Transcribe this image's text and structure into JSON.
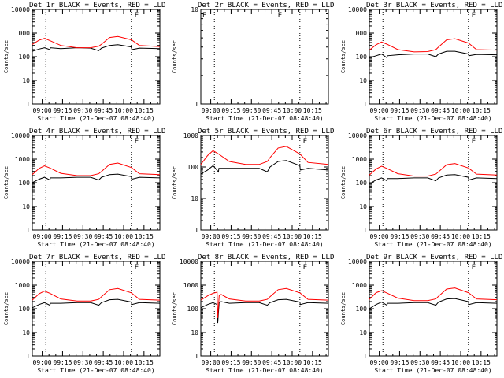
{
  "figure": {
    "colors": {
      "events": "#000000",
      "lld": "#ff0000",
      "axes": "#000000",
      "background": "#ffffff"
    }
  },
  "chart_data": [
    {
      "type": "line",
      "title": "Det 1r BLACK = Events, RED = LLD",
      "xlabel": "Start Time (21-Dec-07 08:48:40)",
      "ylabel": "Counts/sec",
      "x_ticks": [
        "09:00",
        "09:15",
        "09:30",
        "09:45",
        "10:00",
        "10:15"
      ],
      "x_tick_values": [
        4.3,
        19.3,
        34.3,
        49.3,
        64.3,
        79.3
      ],
      "xlim": [
        -3,
        91
      ],
      "ylim": [
        1,
        10000
      ],
      "y_log": true,
      "y_ticks": [
        "1",
        "10",
        "100",
        "1000",
        "10000"
      ],
      "vlines": [
        7,
        70
      ],
      "flag": "E",
      "series": [
        {
          "name": "Events",
          "color": "#000000",
          "x": [
            -3,
            2,
            6,
            10,
            10.3,
            18,
            30,
            40,
            46,
            48,
            54,
            60,
            70,
            70.3,
            76,
            91
          ],
          "y": [
            170,
            210,
            240,
            200,
            240,
            220,
            240,
            230,
            180,
            230,
            300,
            320,
            260,
            200,
            230,
            220
          ]
        },
        {
          "name": "LLD",
          "color": "#ff0000",
          "x": [
            -3,
            2,
            6,
            10,
            18,
            30,
            40,
            46,
            48,
            54,
            60,
            70,
            76,
            91
          ],
          "y": [
            330,
            500,
            600,
            480,
            300,
            240,
            240,
            280,
            340,
            650,
            720,
            520,
            300,
            270
          ]
        }
      ]
    },
    {
      "type": "line",
      "title": "Det 2r BLACK = Events, RED = LLD",
      "xlabel": "Start Time (21-Dec-07 08:48:40)",
      "ylabel": "Counts/sec",
      "x_ticks": [
        "09:00",
        "09:15",
        "09:30",
        "09:45",
        "10:00",
        "10:15"
      ],
      "x_tick_values": [
        4.3,
        19.3,
        34.3,
        49.3,
        64.3,
        79.3
      ],
      "xlim": [
        -3,
        91
      ],
      "ylim": [
        1,
        10
      ],
      "y_log": true,
      "y_ticks": [
        "1",
        "10"
      ],
      "vlines": [
        7,
        70
      ],
      "flags": [
        "E",
        "E"
      ],
      "series": []
    },
    {
      "type": "line",
      "title": "Det 3r BLACK = Events, RED = LLD",
      "xlabel": "Start Time (21-Dec-07 08:48:40)",
      "ylabel": "Counts/sec",
      "x_ticks": [
        "09:00",
        "09:15",
        "09:30",
        "09:45",
        "10:00",
        "10:15"
      ],
      "x_tick_values": [
        4.3,
        19.3,
        34.3,
        49.3,
        64.3,
        79.3
      ],
      "xlim": [
        -3,
        91
      ],
      "ylim": [
        1,
        10000
      ],
      "y_log": true,
      "y_ticks": [
        "1",
        "10",
        "100",
        "1000",
        "10000"
      ],
      "vlines": [
        7,
        70
      ],
      "flag": "E",
      "series": [
        {
          "name": "Events",
          "color": "#000000",
          "x": [
            -3,
            2,
            6,
            10,
            10.3,
            18,
            30,
            40,
            46,
            48,
            54,
            60,
            70,
            70.3,
            76,
            91
          ],
          "y": [
            90,
            110,
            130,
            90,
            110,
            120,
            130,
            130,
            100,
            130,
            170,
            170,
            130,
            110,
            125,
            120
          ]
        },
        {
          "name": "LLD",
          "color": "#ff0000",
          "x": [
            -3,
            2,
            6,
            10,
            18,
            30,
            40,
            46,
            48,
            54,
            60,
            70,
            76,
            91
          ],
          "y": [
            190,
            320,
            420,
            340,
            200,
            160,
            165,
            200,
            260,
            520,
            580,
            380,
            200,
            190
          ]
        }
      ]
    },
    {
      "type": "line",
      "title": "Det 4r BLACK = Events, RED = LLD",
      "xlabel": "Start Time (21-Dec-07 08:48:40)",
      "ylabel": "Counts/sec",
      "x_ticks": [
        "09:00",
        "09:15",
        "09:30",
        "09:45",
        "10:00",
        "10:15"
      ],
      "x_tick_values": [
        4.3,
        19.3,
        34.3,
        49.3,
        64.3,
        79.3
      ],
      "xlim": [
        -3,
        91
      ],
      "ylim": [
        1,
        10000
      ],
      "y_log": true,
      "y_ticks": [
        "1",
        "10",
        "100",
        "1000",
        "10000"
      ],
      "vlines": [
        7,
        70
      ],
      "flag": "E",
      "series": [
        {
          "name": "Events",
          "color": "#000000",
          "x": [
            -3,
            2,
            6,
            10,
            10.3,
            18,
            30,
            40,
            46,
            48,
            54,
            60,
            70,
            70.3,
            76,
            91
          ],
          "y": [
            100,
            140,
            170,
            130,
            160,
            160,
            170,
            170,
            130,
            170,
            220,
            230,
            180,
            140,
            170,
            160
          ]
        },
        {
          "name": "LLD",
          "color": "#ff0000",
          "x": [
            -3,
            2,
            6,
            10,
            18,
            30,
            40,
            46,
            48,
            54,
            60,
            70,
            76,
            91
          ],
          "y": [
            220,
            400,
            520,
            420,
            250,
            200,
            200,
            240,
            300,
            600,
            680,
            440,
            240,
            220
          ]
        }
      ]
    },
    {
      "type": "line",
      "title": "Det 5r BLACK = Events, RED = LLD",
      "xlabel": "Start Time (21-Dec-07 08:48:40)",
      "ylabel": "Counts/sec",
      "x_ticks": [
        "09:00",
        "09:15",
        "09:30",
        "09:45",
        "10:00",
        "10:15"
      ],
      "x_tick_values": [
        4.3,
        19.3,
        34.3,
        49.3,
        64.3,
        79.3
      ],
      "xlim": [
        -3,
        91
      ],
      "ylim": [
        1,
        1000
      ],
      "y_log": true,
      "y_ticks": [
        "1",
        "10",
        "100",
        "1000"
      ],
      "vlines": [
        7,
        70
      ],
      "flag": "E",
      "series": [
        {
          "name": "Events",
          "color": "#000000",
          "x": [
            -3,
            2,
            6,
            10,
            10.3,
            18,
            30,
            40,
            46,
            48,
            54,
            60,
            70,
            70.3,
            76,
            91
          ],
          "y": [
            60,
            80,
            110,
            70,
            90,
            90,
            90,
            90,
            70,
            100,
            150,
            160,
            110,
            80,
            90,
            80
          ]
        },
        {
          "name": "LLD",
          "color": "#ff0000",
          "x": [
            -3,
            2,
            6,
            10,
            18,
            30,
            40,
            46,
            48,
            54,
            60,
            70,
            76,
            91
          ],
          "y": [
            120,
            230,
            330,
            260,
            150,
            120,
            120,
            150,
            200,
            400,
            450,
            260,
            140,
            120
          ]
        }
      ]
    },
    {
      "type": "line",
      "title": "Det 6r BLACK = Events, RED = LLD",
      "xlabel": "Start Time (21-Dec-07 08:48:40)",
      "ylabel": "Counts/sec",
      "x_ticks": [
        "09:00",
        "09:15",
        "09:30",
        "09:45",
        "10:00",
        "10:15"
      ],
      "x_tick_values": [
        4.3,
        19.3,
        34.3,
        49.3,
        64.3,
        79.3
      ],
      "xlim": [
        -3,
        91
      ],
      "ylim": [
        1,
        10000
      ],
      "y_log": true,
      "y_ticks": [
        "1",
        "10",
        "100",
        "1000",
        "10000"
      ],
      "vlines": [
        7,
        70
      ],
      "flag": "E",
      "series": [
        {
          "name": "Events",
          "color": "#000000",
          "x": [
            -3,
            2,
            6,
            10,
            10.3,
            18,
            30,
            40,
            46,
            48,
            54,
            60,
            70,
            70.3,
            76,
            91
          ],
          "y": [
            90,
            130,
            160,
            120,
            150,
            150,
            160,
            160,
            120,
            160,
            210,
            220,
            170,
            130,
            160,
            150
          ]
        },
        {
          "name": "LLD",
          "color": "#ff0000",
          "x": [
            -3,
            2,
            6,
            10,
            18,
            30,
            40,
            46,
            48,
            54,
            60,
            70,
            76,
            91
          ],
          "y": [
            210,
            380,
            500,
            400,
            240,
            190,
            190,
            230,
            290,
            580,
            650,
            420,
            230,
            210
          ]
        }
      ]
    },
    {
      "type": "line",
      "title": "Det 7r BLACK = Events, RED = LLD",
      "xlabel": "Start Time (21-Dec-07 08:48:40)",
      "ylabel": "Counts/sec",
      "x_ticks": [
        "09:00",
        "09:15",
        "09:30",
        "09:45",
        "10:00",
        "10:15"
      ],
      "x_tick_values": [
        4.3,
        19.3,
        34.3,
        49.3,
        64.3,
        79.3
      ],
      "xlim": [
        -3,
        91
      ],
      "ylim": [
        1,
        10000
      ],
      "y_log": true,
      "y_ticks": [
        "1",
        "10",
        "100",
        "1000",
        "10000"
      ],
      "vlines": [
        7,
        70
      ],
      "flag": "E",
      "series": [
        {
          "name": "Events",
          "color": "#000000",
          "x": [
            -3,
            2,
            6,
            10,
            10.3,
            18,
            30,
            40,
            46,
            48,
            54,
            60,
            70,
            70.3,
            76,
            91
          ],
          "y": [
            110,
            150,
            180,
            140,
            170,
            170,
            180,
            180,
            140,
            180,
            240,
            250,
            190,
            150,
            180,
            170
          ]
        },
        {
          "name": "LLD",
          "color": "#ff0000",
          "x": [
            -3,
            2,
            6,
            10,
            18,
            30,
            40,
            46,
            48,
            54,
            60,
            70,
            76,
            91
          ],
          "y": [
            230,
            430,
            560,
            450,
            260,
            210,
            210,
            250,
            320,
            640,
            720,
            470,
            250,
            230
          ]
        }
      ]
    },
    {
      "type": "line",
      "title": "Det 8r BLACK = Events, RED = LLD",
      "xlabel": "Start Time (21-Dec-07 08:48:40)",
      "ylabel": "Counts/sec",
      "x_ticks": [
        "09:00",
        "09:15",
        "09:30",
        "09:45",
        "10:00",
        "10:15"
      ],
      "x_tick_values": [
        4.3,
        19.3,
        34.3,
        49.3,
        64.3,
        79.3
      ],
      "xlim": [
        -3,
        91
      ],
      "ylim": [
        1,
        10000
      ],
      "y_log": true,
      "y_ticks": [
        "1",
        "10",
        "100",
        "1000",
        "10000"
      ],
      "vlines": [
        7,
        70
      ],
      "flag": "E",
      "series": [
        {
          "name": "Events",
          "color": "#000000",
          "x": [
            -3,
            2,
            6,
            9,
            9.5,
            10.5,
            12,
            18,
            30,
            40,
            46,
            48,
            54,
            60,
            70,
            70.3,
            76,
            91
          ],
          "y": [
            110,
            150,
            180,
            150,
            25,
            180,
            200,
            170,
            180,
            180,
            140,
            180,
            240,
            250,
            190,
            150,
            180,
            170
          ]
        },
        {
          "name": "LLD",
          "color": "#ff0000",
          "x": [
            -3,
            2,
            6,
            9,
            9.5,
            10.5,
            12,
            18,
            30,
            40,
            46,
            48,
            54,
            60,
            70,
            76,
            91
          ],
          "y": [
            230,
            350,
            450,
            500,
            40,
            350,
            400,
            260,
            210,
            210,
            250,
            320,
            640,
            720,
            470,
            250,
            230
          ]
        }
      ]
    },
    {
      "type": "line",
      "title": "Det 9r BLACK = Events, RED = LLD",
      "xlabel": "Start Time (21-Dec-07 08:48:40)",
      "ylabel": "Counts/sec",
      "x_ticks": [
        "09:00",
        "09:15",
        "09:30",
        "09:45",
        "10:00",
        "10:15"
      ],
      "x_tick_values": [
        4.3,
        19.3,
        34.3,
        49.3,
        64.3,
        79.3
      ],
      "xlim": [
        -3,
        91
      ],
      "ylim": [
        1,
        10000
      ],
      "y_log": true,
      "y_ticks": [
        "1",
        "10",
        "100",
        "1000",
        "10000"
      ],
      "vlines": [
        7,
        70
      ],
      "flag": "E",
      "series": [
        {
          "name": "Events",
          "color": "#000000",
          "x": [
            -3,
            2,
            6,
            10,
            10.3,
            18,
            30,
            40,
            46,
            48,
            54,
            60,
            70,
            70.3,
            76,
            91
          ],
          "y": [
            100,
            150,
            190,
            140,
            170,
            170,
            180,
            180,
            140,
            190,
            260,
            270,
            200,
            150,
            180,
            170
          ]
        },
        {
          "name": "LLD",
          "color": "#ff0000",
          "x": [
            -3,
            2,
            6,
            10,
            18,
            30,
            40,
            46,
            48,
            54,
            60,
            70,
            76,
            91
          ],
          "y": [
            250,
            480,
            580,
            460,
            280,
            220,
            220,
            260,
            340,
            680,
            760,
            480,
            260,
            240
          ]
        }
      ]
    }
  ]
}
